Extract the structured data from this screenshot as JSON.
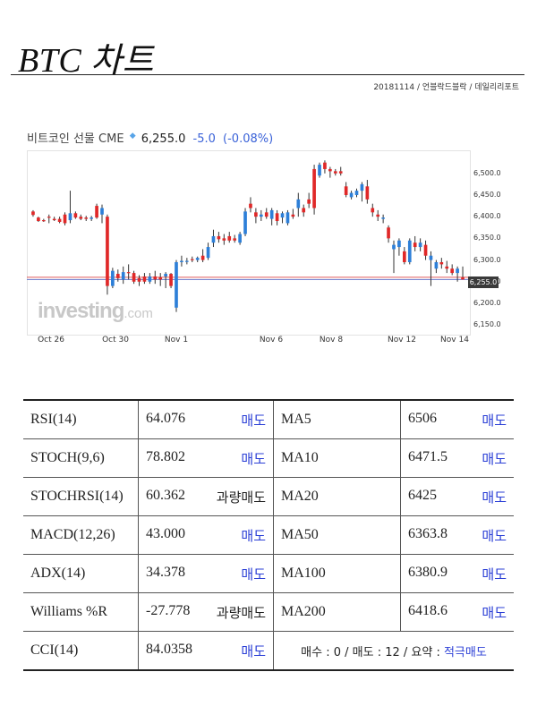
{
  "header": {
    "title": "BTC 차트",
    "byline": "20181114 / 언블락드블락 / 데일리리포트"
  },
  "quote": {
    "name": "비트코인 선물 CME",
    "price": "6,255.0",
    "change": "-5.0",
    "change_pct": "(-0.08%)",
    "watermark_brand": "investing",
    "watermark_domain": ".com",
    "last_tag": "6,255.0"
  },
  "chart_data": {
    "type": "candlestick",
    "x_labels": [
      "Oct 26",
      "Oct 30",
      "Nov 1",
      "Nov 6",
      "Nov 8",
      "Nov 12",
      "Nov 14"
    ],
    "y_ticks": [
      "6,500.0",
      "6,450.0",
      "6,400.0",
      "6,350.0",
      "6,300.0",
      "6,250.0",
      "6,200.0",
      "6,150.0"
    ],
    "ylim": [
      6140,
      6545
    ],
    "up_color": "#2d7fd8",
    "down_color": "#e02828",
    "reference_lines": [
      6260,
      6255
    ],
    "ohlc": [
      [
        6412,
        6415,
        6400,
        6404
      ],
      [
        6398,
        6400,
        6388,
        6390
      ],
      [
        6392,
        6395,
        6388,
        6390
      ],
      [
        6400,
        6405,
        6385,
        6398
      ],
      [
        6395,
        6400,
        6390,
        6392
      ],
      [
        6395,
        6400,
        6385,
        6388
      ],
      [
        6405,
        6410,
        6380,
        6385
      ],
      [
        6392,
        6460,
        6385,
        6408
      ],
      [
        6408,
        6412,
        6395,
        6398
      ],
      [
        6400,
        6405,
        6392,
        6395
      ],
      [
        6398,
        6402,
        6390,
        6395
      ],
      [
        6395,
        6402,
        6390,
        6398
      ],
      [
        6425,
        6430,
        6395,
        6398
      ],
      [
        6405,
        6428,
        6385,
        6420
      ],
      [
        6400,
        6405,
        6220,
        6240
      ],
      [
        6240,
        6282,
        6235,
        6275
      ],
      [
        6268,
        6278,
        6250,
        6258
      ],
      [
        6255,
        6285,
        6245,
        6272
      ],
      [
        6272,
        6290,
        6255,
        6270
      ],
      [
        6270,
        6275,
        6245,
        6250
      ],
      [
        6258,
        6265,
        6240,
        6250
      ],
      [
        6262,
        6270,
        6245,
        6250
      ],
      [
        6250,
        6270,
        6245,
        6262
      ],
      [
        6262,
        6275,
        6245,
        6255
      ],
      [
        6260,
        6270,
        6240,
        6255
      ],
      [
        6262,
        6272,
        6235,
        6268
      ],
      [
        6268,
        6270,
        6235,
        6240
      ],
      [
        6190,
        6300,
        6180,
        6295
      ],
      [
        6295,
        6310,
        6285,
        6298
      ],
      [
        6297,
        6305,
        6290,
        6298
      ],
      [
        6302,
        6308,
        6295,
        6300
      ],
      [
        6300,
        6308,
        6295,
        6305
      ],
      [
        6310,
        6325,
        6295,
        6300
      ],
      [
        6305,
        6340,
        6300,
        6330
      ],
      [
        6340,
        6370,
        6330,
        6355
      ],
      [
        6355,
        6365,
        6340,
        6348
      ],
      [
        6350,
        6360,
        6335,
        6345
      ],
      [
        6355,
        6365,
        6340,
        6345
      ],
      [
        6350,
        6358,
        6340,
        6345
      ],
      [
        6340,
        6365,
        6335,
        6360
      ],
      [
        6360,
        6420,
        6355,
        6412
      ],
      [
        6430,
        6445,
        6410,
        6420
      ],
      [
        6410,
        6420,
        6385,
        6400
      ],
      [
        6400,
        6415,
        6390,
        6405
      ],
      [
        6410,
        6420,
        6395,
        6400
      ],
      [
        6395,
        6420,
        6380,
        6415
      ],
      [
        6408,
        6415,
        6380,
        6390
      ],
      [
        6398,
        6412,
        6385,
        6408
      ],
      [
        6385,
        6415,
        6380,
        6410
      ],
      [
        6405,
        6418,
        6395,
        6400
      ],
      [
        6420,
        6455,
        6400,
        6440
      ],
      [
        6420,
        6428,
        6400,
        6410
      ],
      [
        6440,
        6455,
        6420,
        6430
      ],
      [
        6510,
        6520,
        6405,
        6420
      ],
      [
        6495,
        6525,
        6490,
        6520
      ],
      [
        6525,
        6530,
        6500,
        6510
      ],
      [
        6510,
        6515,
        6490,
        6505
      ],
      [
        6505,
        6510,
        6495,
        6500
      ],
      [
        6505,
        6515,
        6495,
        6500
      ],
      [
        6470,
        6480,
        6445,
        6450
      ],
      [
        6445,
        6460,
        6440,
        6455
      ],
      [
        6450,
        6465,
        6445,
        6460
      ],
      [
        6460,
        6480,
        6435,
        6475
      ],
      [
        6470,
        6485,
        6430,
        6440
      ],
      [
        6420,
        6430,
        6400,
        6410
      ],
      [
        6405,
        6415,
        6390,
        6400
      ],
      [
        6395,
        6405,
        6385,
        6398
      ],
      [
        6375,
        6380,
        6340,
        6350
      ],
      [
        6325,
        6345,
        6270,
        6335
      ],
      [
        6330,
        6350,
        6310,
        6345
      ],
      [
        6320,
        6330,
        6290,
        6295
      ],
      [
        6295,
        6350,
        6290,
        6345
      ],
      [
        6340,
        6355,
        6320,
        6330
      ],
      [
        6330,
        6350,
        6320,
        6340
      ],
      [
        6335,
        6345,
        6300,
        6310
      ],
      [
        6300,
        6320,
        6240,
        6310
      ],
      [
        6280,
        6300,
        6270,
        6295
      ],
      [
        6295,
        6305,
        6280,
        6290
      ],
      [
        6285,
        6298,
        6270,
        6280
      ],
      [
        6280,
        6290,
        6265,
        6270
      ],
      [
        6270,
        6285,
        6250,
        6280
      ],
      [
        6260,
        6285,
        6255,
        6255
      ]
    ]
  },
  "indicators": [
    {
      "name": "RSI(14)",
      "value": "64.076",
      "action": "매도",
      "ma_name": "MA5",
      "ma_value": "6506",
      "ma_action": "매도"
    },
    {
      "name": "STOCH(9,6)",
      "value": "78.802",
      "action": "매도",
      "ma_name": "MA10",
      "ma_value": "6471.5",
      "ma_action": "매도"
    },
    {
      "name": "STOCHRSI(14)",
      "value": "60.362",
      "action": "과량매도",
      "ma_name": "MA20",
      "ma_value": "6425",
      "ma_action": "매도"
    },
    {
      "name": "MACD(12,26)",
      "value": "43.000",
      "action": "매도",
      "ma_name": "MA50",
      "ma_value": "6363.8",
      "ma_action": "매도"
    },
    {
      "name": "ADX(14)",
      "value": "34.378",
      "action": "매도",
      "ma_name": "MA100",
      "ma_value": "6380.9",
      "ma_action": "매도"
    },
    {
      "name": "Williams %R",
      "value": "-27.778",
      "action": "과량매도",
      "ma_name": "MA200",
      "ma_value": "6418.6",
      "ma_action": "매도"
    }
  ],
  "last_row": {
    "name": "CCI(14)",
    "value": "84.0358",
    "action": "매도"
  },
  "summary": {
    "text": "매수 : 0 / 매도 : 12 / 요약 : ",
    "verdict": "적극매도"
  }
}
